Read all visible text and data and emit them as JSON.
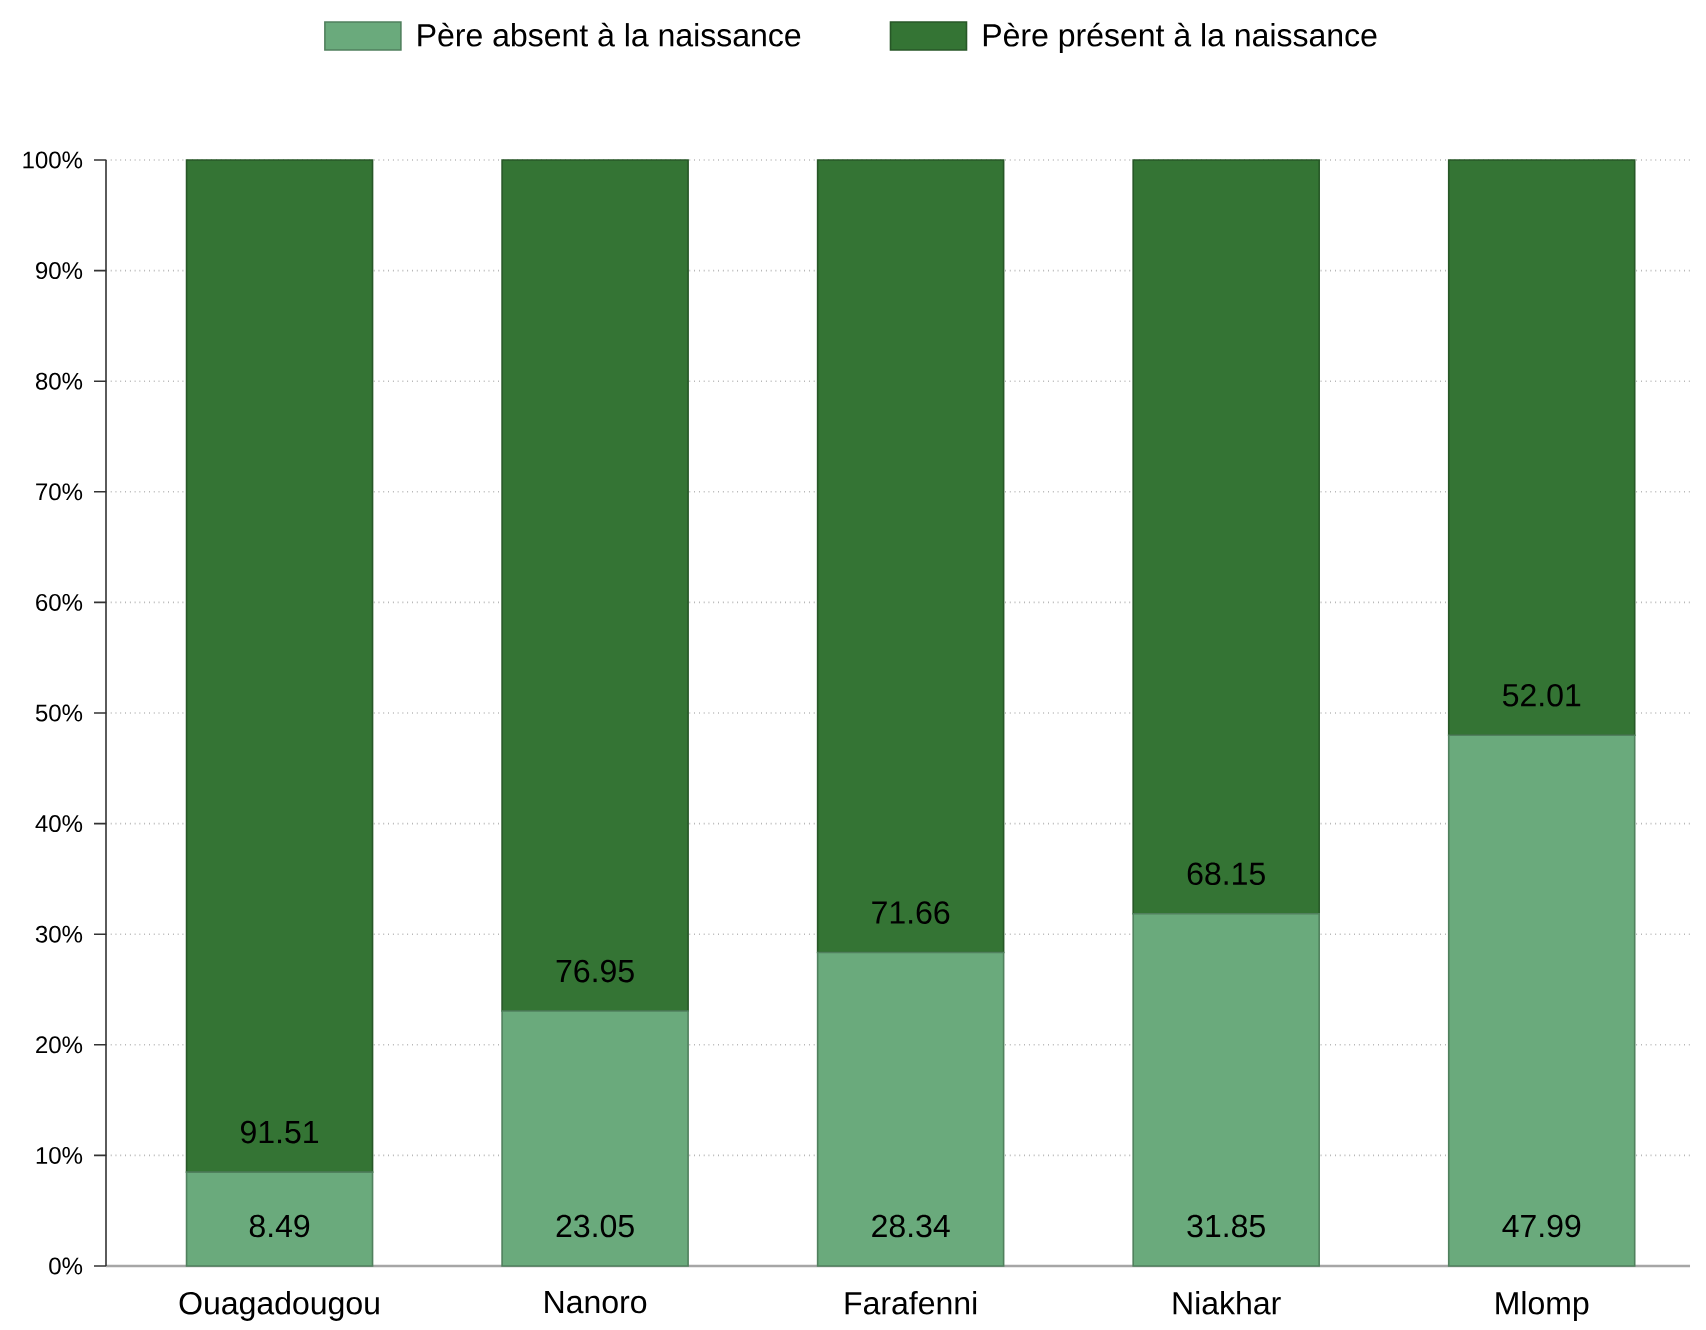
{
  "chart_data": {
    "type": "bar",
    "stacked": true,
    "categories": [
      "Ouagadougou",
      "Nanoro",
      "Farafenni",
      "Niakhar",
      "Mlomp"
    ],
    "series": [
      {
        "name": "Père absent à la naissance",
        "color": "#6aaa7c",
        "values": [
          8.49,
          23.05,
          28.34,
          31.85,
          47.99
        ]
      },
      {
        "name": "Père présent à la naissance",
        "color": "#347434",
        "values": [
          91.51,
          76.95,
          71.66,
          68.15,
          52.01
        ]
      }
    ],
    "ylim": [
      0,
      100
    ],
    "yticks": [
      {
        "value": 0,
        "label": "0%"
      },
      {
        "value": 10,
        "label": "10%"
      },
      {
        "value": 20,
        "label": "20%"
      },
      {
        "value": 30,
        "label": "30%"
      },
      {
        "value": 40,
        "label": "40%"
      },
      {
        "value": 50,
        "label": "50%"
      },
      {
        "value": 60,
        "label": "60%"
      },
      {
        "value": 70,
        "label": "70%"
      },
      {
        "value": 80,
        "label": "80%"
      },
      {
        "value": 90,
        "label": "90%"
      },
      {
        "value": 100,
        "label": "100%"
      }
    ],
    "grid": "y",
    "legend": "top",
    "data_labels": true
  }
}
